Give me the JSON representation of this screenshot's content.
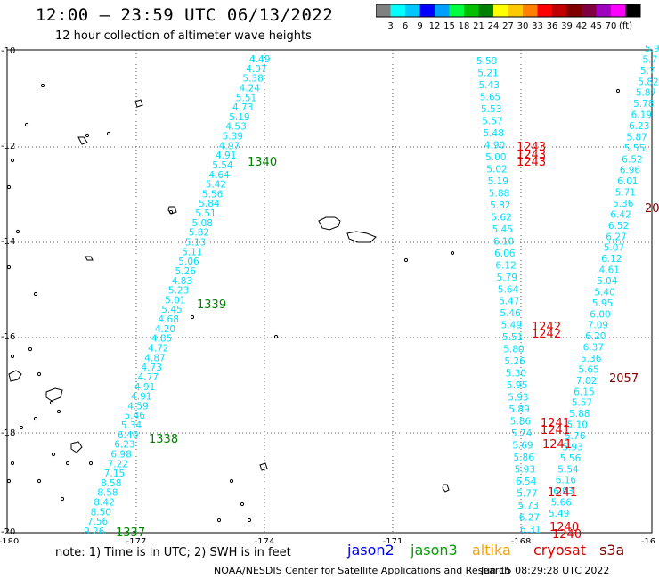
{
  "header": {
    "title": "12:00 — 23:59 UTC 06/13/2022",
    "subtitle": "12 hour collection of altimeter wave heights"
  },
  "colorbar": {
    "colors": [
      "#808080",
      "#00ffff",
      "#00c8ff",
      "#0000ff",
      "#00a0ff",
      "#00ff40",
      "#00c000",
      "#008000",
      "#ffff00",
      "#ffc800",
      "#ff8000",
      "#ff0000",
      "#c00000",
      "#800000",
      "#800040",
      "#a000c0",
      "#ff00ff",
      "#000000"
    ],
    "labels": [
      "3",
      "6",
      "9",
      "12",
      "15",
      "18",
      "21",
      "24",
      "27",
      "30",
      "33",
      "36",
      "39",
      "42",
      "45",
      "70",
      "(ft)"
    ]
  },
  "map": {
    "lon_ticks": [
      "-180",
      "-177",
      "-174",
      "-171",
      "-168",
      "-16"
    ],
    "lat_ticks": [
      "-10",
      "-12",
      "-14",
      "-16",
      "-18",
      "-20"
    ],
    "track_color": "#00e0ff"
  },
  "tracks": {
    "left": [
      "4.49",
      "4.97",
      "5.38",
      "4.24",
      "5.51",
      "4.73",
      "5.19",
      "4.53",
      "5.39",
      "4.97",
      "4.91",
      "5.54",
      "4.64",
      "5.42",
      "5.56",
      "5.84",
      "5.51",
      "5.08",
      "5.82",
      "5.13",
      "5.11",
      "5.06",
      "5.26",
      "4.83",
      "5.23",
      "5.01",
      "5.45",
      "4.68",
      "4.20",
      "4.85",
      "4.72",
      "4.87",
      "4.73",
      "4.77",
      "4.91",
      "4.91",
      "4.59",
      "5.46",
      "5.34",
      "6.40",
      "6.23",
      "6.98",
      "7.22",
      "7.15",
      "8.58",
      "8.58",
      "8.42",
      "8.50",
      "7.56",
      "9.26"
    ],
    "mid": [
      "5.59",
      "5.21",
      "5.43",
      "5.65",
      "5.53",
      "5.57",
      "5.48",
      "4.90",
      "5.00",
      "5.02",
      "5.19",
      "5.88",
      "5.82",
      "5.62",
      "5.45",
      "6.10",
      "6.06",
      "6.12",
      "5.79",
      "5.64",
      "5.47",
      "5.46",
      "5.49",
      "5.51",
      "5.80",
      "5.26",
      "5.30",
      "5.95",
      "5.93",
      "5.89",
      "5.86",
      "5.74",
      "5.69",
      "5.86",
      "5.93",
      "6.54",
      "5.77",
      "5.73",
      "6.27",
      "6.31"
    ],
    "right": [
      "5.9",
      "5.7",
      "5.7",
      "5.82",
      "5.87",
      "5.78",
      "6.19",
      "6.23",
      "5.87",
      "5.55",
      "6.52",
      "6.96",
      "6.01",
      "5.71",
      "5.36",
      "6.42",
      "6.52",
      "6.27",
      "5.07",
      "6.12",
      "4.61",
      "5.04",
      "5.40",
      "5.95",
      "6.00",
      "7.09",
      "6.20",
      "6.37",
      "5.36",
      "5.65",
      "7.02",
      "6.15",
      "5.57",
      "5.88",
      "5.10",
      "5.76",
      "5.93",
      "5.56",
      "5.54",
      "6.16",
      "6.93",
      "5.66",
      "5.49"
    ]
  },
  "passes": {
    "p1340": "1340",
    "p1339": "1339",
    "p1338": "1338",
    "p1337": "1337",
    "p1243a": "1243",
    "p1243b": "1243",
    "p1243c": "1243",
    "p1242a": "1242",
    "p1242b": "1242",
    "p1241a": "1241",
    "p1241b": "1241",
    "p1241c": "1241",
    "p1241d": "1241",
    "p1240a": "1240",
    "p1240b": "1240",
    "p2057": "2057",
    "p20": "20"
  },
  "footer": {
    "note": "note:  1) Time is in UTC;  2) SWH is in feet",
    "jason2": "jason2",
    "jason3": "jason3",
    "altika": "altika",
    "cryosat": "cryosat",
    "s3a": "s3a",
    "jason2_color": "#0000e0",
    "jason3_color": "#00a000",
    "altika_color": "#ffa000",
    "cryosat_color": "#e00000",
    "s3a_color": "#800000",
    "credit": "NOAA/NESDIS Center for Satellite Applications and Research",
    "timestamp": "Jun 15 08:29:28 UTC 2022"
  }
}
